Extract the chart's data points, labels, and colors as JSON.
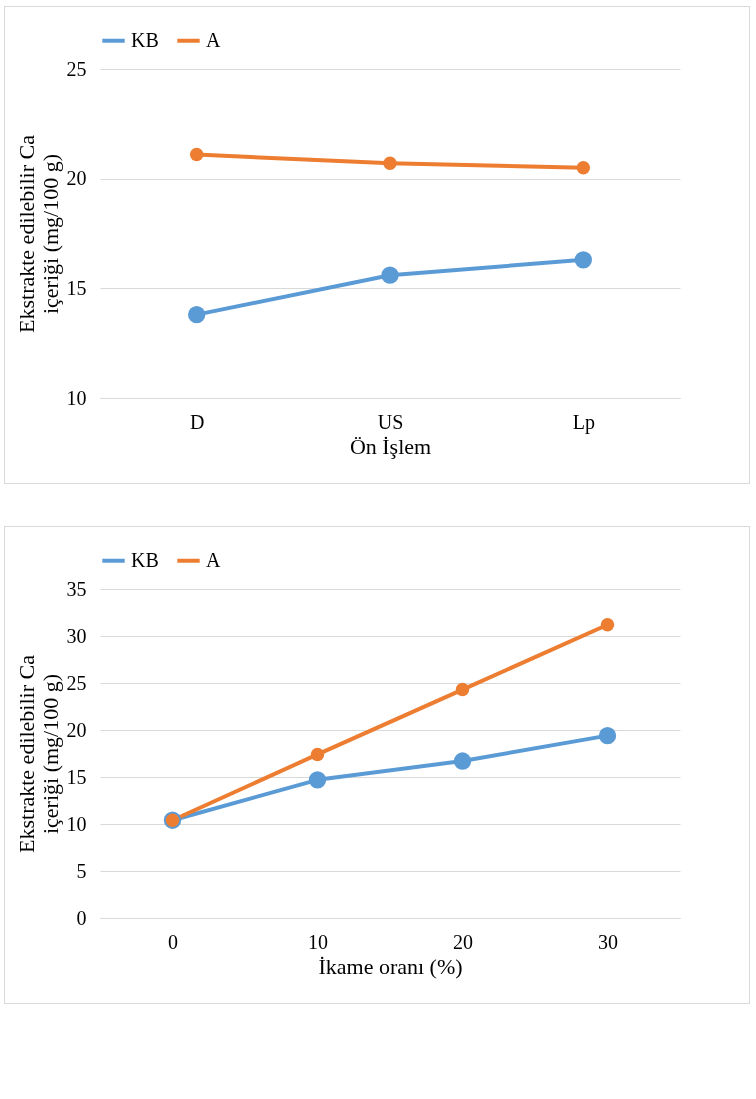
{
  "chart_data": [
    {
      "type": "line",
      "xlabel": "Ön İşlem",
      "ylabel": "Ekstrakte edilebilir Ca içeriği (mg/100 g)",
      "categories": [
        "D",
        "US",
        "Lp"
      ],
      "series": [
        {
          "name": "KB",
          "color": "#5b9bd5",
          "values": [
            13.8,
            15.6,
            16.3
          ]
        },
        {
          "name": "A",
          "color": "#ed7d31",
          "values": [
            21.1,
            20.7,
            20.5
          ]
        }
      ],
      "ylim": [
        10,
        25
      ],
      "yticks": [
        10,
        15,
        20,
        25
      ],
      "grid": "y",
      "legend": "top",
      "marker": "circle",
      "line_style": "solid"
    },
    {
      "type": "line",
      "xlabel": "İkame oranı (%)",
      "ylabel": "Ekstrakte edilebilir Ca içeriği (mg/100 g)",
      "categories": [
        "0",
        "10",
        "20",
        "30"
      ],
      "series": [
        {
          "name": "KB",
          "color": "#5b9bd5",
          "values": [
            10.4,
            14.7,
            16.7,
            19.4
          ]
        },
        {
          "name": "A",
          "color": "#ed7d31",
          "values": [
            10.4,
            17.4,
            24.3,
            31.2
          ]
        }
      ],
      "ylim": [
        0,
        35
      ],
      "yticks": [
        0,
        5,
        10,
        15,
        20,
        25,
        30,
        35
      ],
      "grid": "y",
      "legend": "top",
      "marker": "circle",
      "line_style": "solid"
    }
  ]
}
